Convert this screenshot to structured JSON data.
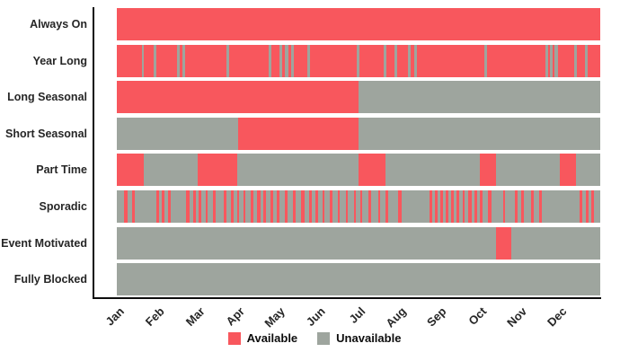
{
  "chart_data": {
    "type": "heatmap",
    "subtype": "availability-timeline",
    "title": "",
    "x": {
      "unit": "month",
      "range": [
        0,
        12
      ],
      "tick_labels": [
        "Jan",
        "Feb",
        "Mar",
        "Apr",
        "May",
        "Jun",
        "Jul",
        "Aug",
        "Sep",
        "Oct",
        "Nov",
        "Dec"
      ]
    },
    "colors": {
      "available": "#f8575d",
      "unavailable": "#9ea59e"
    },
    "legend": {
      "items": [
        {
          "label": "Available",
          "state": "available"
        },
        {
          "label": "Unavailable",
          "state": "unavailable"
        }
      ]
    },
    "rows": [
      {
        "label": "Always On",
        "base": "available",
        "overlay_state": "unavailable",
        "overlays": []
      },
      {
        "label": "Year Long",
        "base": "available",
        "overlay_state": "unavailable",
        "overlays": [
          [
            0.62,
            0.68
          ],
          [
            0.92,
            0.98
          ],
          [
            1.5,
            1.56
          ],
          [
            1.63,
            1.69
          ],
          [
            2.73,
            2.79
          ],
          [
            3.77,
            3.83
          ],
          [
            4.04,
            4.1
          ],
          [
            4.18,
            4.26
          ],
          [
            4.33,
            4.39
          ],
          [
            4.73,
            4.79
          ],
          [
            5.96,
            6.02
          ],
          [
            6.63,
            6.69
          ],
          [
            6.9,
            6.96
          ],
          [
            7.23,
            7.29
          ],
          [
            7.39,
            7.45
          ],
          [
            9.13,
            9.19
          ],
          [
            10.65,
            10.71
          ],
          [
            10.76,
            10.82
          ],
          [
            10.87,
            10.95
          ],
          [
            11.36,
            11.42
          ],
          [
            11.63,
            11.69
          ]
        ]
      },
      {
        "label": "Long Seasonal",
        "base": "unavailable",
        "overlay_state": "available",
        "overlays": [
          [
            0,
            6
          ]
        ]
      },
      {
        "label": "Short Seasonal",
        "base": "unavailable",
        "overlay_state": "available",
        "overlays": [
          [
            3,
            6
          ]
        ]
      },
      {
        "label": "Part Time",
        "base": "unavailable",
        "overlay_state": "available",
        "overlays": [
          [
            0,
            0.68
          ],
          [
            2,
            3
          ],
          [
            6,
            6.66
          ],
          [
            9,
            9.42
          ],
          [
            11,
            11.4
          ]
        ]
      },
      {
        "label": "Sporadic",
        "base": "unavailable",
        "overlay_state": "available",
        "overlays": [
          [
            0.18,
            0.26
          ],
          [
            0.38,
            0.44
          ],
          [
            0.98,
            1.04
          ],
          [
            1.12,
            1.18
          ],
          [
            1.28,
            1.34
          ],
          [
            1.72,
            1.8
          ],
          [
            1.9,
            1.96
          ],
          [
            2.04,
            2.1
          ],
          [
            2.2,
            2.26
          ],
          [
            2.38,
            2.46
          ],
          [
            2.66,
            2.72
          ],
          [
            2.84,
            2.9
          ],
          [
            2.98,
            3.04
          ],
          [
            3.14,
            3.2
          ],
          [
            3.32,
            3.38
          ],
          [
            3.48,
            3.56
          ],
          [
            3.64,
            3.7
          ],
          [
            3.82,
            3.88
          ],
          [
            3.98,
            4.04
          ],
          [
            4.18,
            4.24
          ],
          [
            4.38,
            4.44
          ],
          [
            4.58,
            4.66
          ],
          [
            4.78,
            4.84
          ],
          [
            4.94,
            5.0
          ],
          [
            5.1,
            5.16
          ],
          [
            5.28,
            5.36
          ],
          [
            5.48,
            5.54
          ],
          [
            5.68,
            5.74
          ],
          [
            5.88,
            5.94
          ],
          [
            6.04,
            6.1
          ],
          [
            6.24,
            6.32
          ],
          [
            6.48,
            6.54
          ],
          [
            6.68,
            6.74
          ],
          [
            6.98,
            7.06
          ],
          [
            7.76,
            7.82
          ],
          [
            7.9,
            7.96
          ],
          [
            8.04,
            8.1
          ],
          [
            8.16,
            8.24
          ],
          [
            8.3,
            8.36
          ],
          [
            8.44,
            8.5
          ],
          [
            8.58,
            8.64
          ],
          [
            8.72,
            8.8
          ],
          [
            8.88,
            8.94
          ],
          [
            9.02,
            9.08
          ],
          [
            9.22,
            9.3
          ],
          [
            9.58,
            9.64
          ],
          [
            9.88,
            9.94
          ],
          [
            10.04,
            10.1
          ],
          [
            10.28,
            10.36
          ],
          [
            10.48,
            10.54
          ],
          [
            11.48,
            11.56
          ],
          [
            11.64,
            11.7
          ],
          [
            11.78,
            11.84
          ]
        ]
      },
      {
        "label": "Event Motivated",
        "base": "unavailable",
        "overlay_state": "available",
        "overlays": [
          [
            9.42,
            9.8
          ]
        ]
      },
      {
        "label": "Fully Blocked",
        "base": "unavailable",
        "overlay_state": "available",
        "overlays": []
      }
    ]
  }
}
